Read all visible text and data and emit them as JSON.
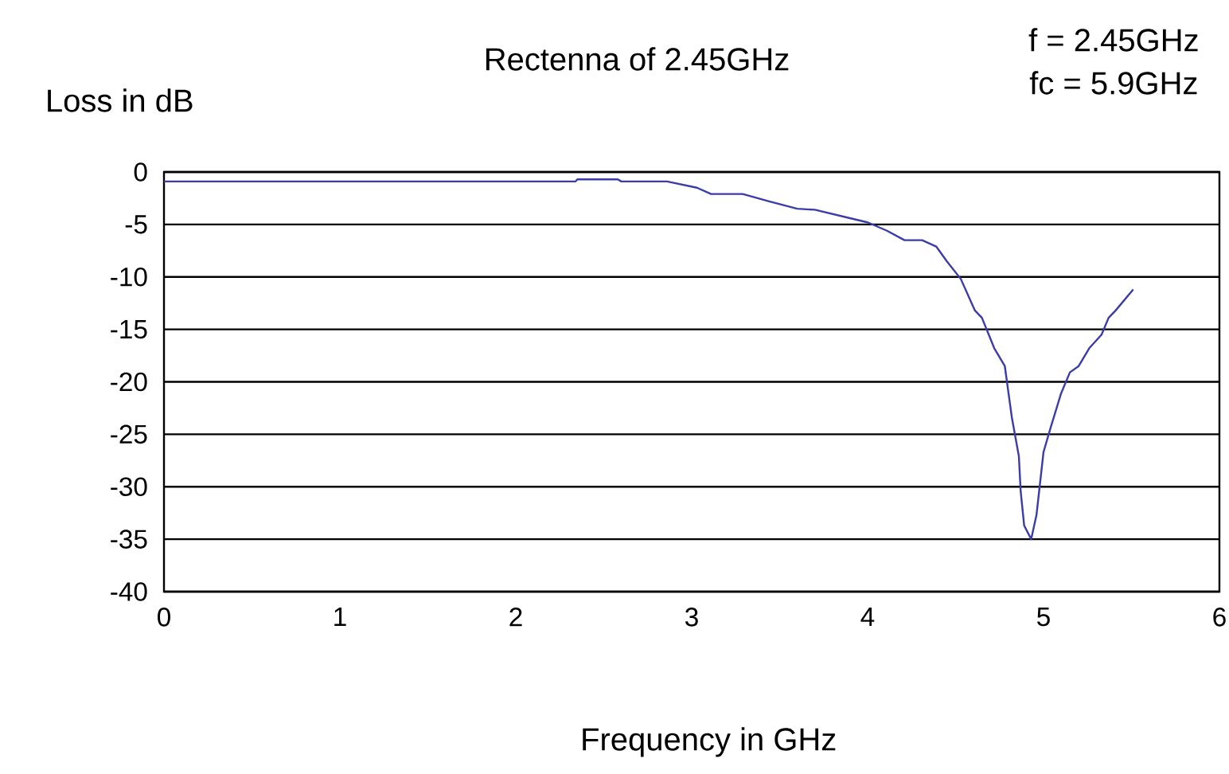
{
  "chart_data": {
    "type": "line",
    "title": "Rectenna of 2.45GHz",
    "xlabel": "Frequency in GHz",
    "ylabel": "Loss in dB",
    "annotations": [
      "f = 2.45GHz",
      "fc = 5.9GHz"
    ],
    "x": [
      0,
      2.34,
      2.35,
      2.58,
      2.6,
      2.86,
      3.03,
      3.11,
      3.29,
      3.44,
      3.6,
      3.7,
      3.9,
      4.0,
      4.11,
      4.21,
      4.31,
      4.39,
      4.45,
      4.53,
      4.61,
      4.65,
      4.72,
      4.78,
      4.82,
      4.86,
      4.87,
      4.89,
      4.93,
      4.96,
      5.0,
      5.04,
      5.1,
      5.15,
      5.2,
      5.26,
      5.33,
      5.37,
      5.41,
      5.51
    ],
    "values": [
      -0.9,
      -0.9,
      -0.7,
      -0.7,
      -0.9,
      -0.9,
      -1.5,
      -2.1,
      -2.1,
      -2.8,
      -3.5,
      -3.6,
      -4.4,
      -4.8,
      -5.6,
      -6.5,
      -6.5,
      -7.1,
      -8.5,
      -10.2,
      -13.2,
      -13.9,
      -16.8,
      -18.5,
      -23.4,
      -27.1,
      -30.4,
      -33.7,
      -35,
      -32.7,
      -26.7,
      -24.4,
      -21.1,
      -19.1,
      -18.5,
      -16.8,
      -15.5,
      -13.9,
      -13.2,
      -11.2
    ],
    "color": "#3c3ca8",
    "xlim": [
      0,
      6
    ],
    "xticks": [
      0,
      1,
      2,
      3,
      4,
      5,
      6
    ],
    "ylim": [
      -40,
      0
    ],
    "yticks": [
      0,
      -5,
      -10,
      -15,
      -20,
      -25,
      -30,
      -35,
      -40
    ],
    "grid": "y"
  }
}
